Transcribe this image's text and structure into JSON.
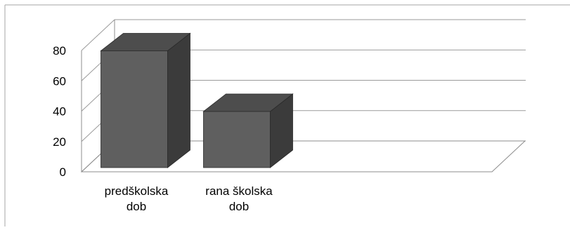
{
  "chart_data": {
    "type": "bar",
    "style": "3d-column",
    "categories": [
      [
        "predškolska",
        "dob"
      ],
      [
        "rana školska",
        "dob"
      ]
    ],
    "values": [
      77,
      37
    ],
    "ylim": [
      0,
      80
    ],
    "yticks": [
      0,
      20,
      40,
      60,
      80
    ],
    "grid": true,
    "legend": "none",
    "colors": {
      "bar_front": "#5f5f5f",
      "bar_top": "#4d4d4d",
      "bar_side": "#3b3b3b",
      "grid": "#9a9a9a",
      "axis": "#8c8c8c",
      "frame": "#a6a6a6"
    }
  }
}
